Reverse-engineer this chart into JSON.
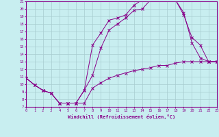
{
  "bg_color": "#c8eef0",
  "line_color": "#880088",
  "grid_color": "#a8ccd0",
  "xlim": [
    0,
    23
  ],
  "ylim": [
    7,
    21
  ],
  "xticks": [
    0,
    1,
    2,
    3,
    4,
    5,
    6,
    7,
    8,
    9,
    10,
    11,
    12,
    13,
    14,
    15,
    16,
    17,
    18,
    19,
    20,
    21,
    22,
    23
  ],
  "yticks": [
    7,
    8,
    9,
    10,
    11,
    12,
    13,
    14,
    15,
    16,
    17,
    18,
    19,
    20,
    21
  ],
  "xlabel": "Windchill (Refroidissement éolien,°C)",
  "curve1_x": [
    0,
    1,
    2,
    3,
    4,
    5,
    6,
    7,
    8,
    9,
    10,
    11,
    12,
    13,
    14,
    15,
    16,
    17,
    18,
    19,
    20,
    21,
    22,
    23
  ],
  "curve1_y": [
    10.8,
    9.9,
    9.2,
    8.8,
    7.5,
    7.5,
    7.5,
    9.2,
    11.2,
    14.8,
    17.2,
    18.0,
    18.8,
    19.8,
    20.0,
    21.2,
    21.2,
    21.2,
    21.2,
    19.2,
    16.2,
    15.2,
    13.0,
    13.0
  ],
  "curve2_x": [
    0,
    1,
    2,
    3,
    4,
    5,
    6,
    7,
    8,
    9,
    10,
    11,
    12,
    13,
    14,
    15,
    16,
    17,
    18,
    19,
    20,
    21,
    22,
    23
  ],
  "curve2_y": [
    10.8,
    9.9,
    9.2,
    8.8,
    7.5,
    7.5,
    7.5,
    9.2,
    15.2,
    16.8,
    18.5,
    18.8,
    19.2,
    20.5,
    21.2,
    21.5,
    21.2,
    21.5,
    21.2,
    19.5,
    15.5,
    13.5,
    13.0,
    13.0
  ],
  "curve3_x": [
    0,
    1,
    2,
    3,
    4,
    5,
    6,
    7,
    8,
    9,
    10,
    11,
    12,
    13,
    14,
    15,
    16,
    17,
    18,
    19,
    20,
    21,
    22,
    23
  ],
  "curve3_y": [
    10.8,
    9.9,
    9.2,
    8.8,
    7.5,
    7.5,
    7.5,
    7.5,
    9.5,
    10.2,
    10.8,
    11.2,
    11.5,
    11.8,
    12.0,
    12.2,
    12.5,
    12.5,
    12.8,
    13.0,
    13.0,
    13.0,
    13.0,
    13.0
  ]
}
